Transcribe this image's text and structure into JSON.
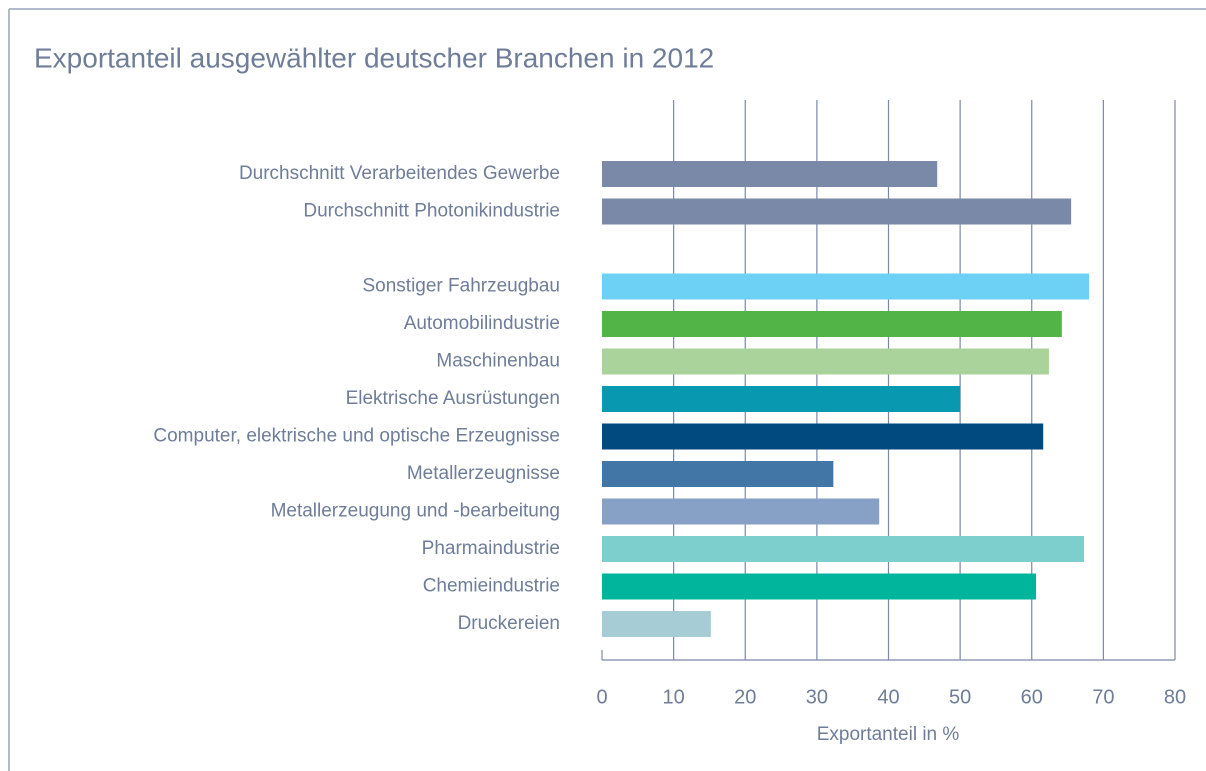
{
  "chart_data": {
    "type": "barh",
    "title": "Exportanteil ausgewählter deutscher Branchen in 2012",
    "xlabel": "Exportanteil in %",
    "categories": [
      "Durchschnitt Verarbeitendes Gewerbe",
      "Durchschnitt Photonikindustrie",
      null,
      "Sonstiger Fahrzeugbau",
      "Automobilindustrie",
      "Maschinenbau",
      "Elektrische Ausrüstungen",
      "Computer, elektrische und optische Erzeugnisse",
      "Metallerzeugnisse",
      "Metallerzeugung und -bearbeitung",
      "Pharmaindustrie",
      "Chemieindustrie",
      "Druckereien"
    ],
    "values": [
      46.8,
      65.5,
      null,
      68.0,
      64.2,
      62.4,
      50.0,
      61.6,
      32.3,
      38.7,
      67.3,
      60.6,
      15.2
    ],
    "colors": [
      "#7b89a8",
      "#7b89a8",
      null,
      "#6dd0f5",
      "#52b447",
      "#a9d39a",
      "#0899b1",
      "#004a7f",
      "#4276a6",
      "#86a0c6",
      "#7ccfcc",
      "#00b59c",
      "#a6cdd6"
    ],
    "xlim": [
      0,
      80
    ],
    "xticks": [
      0,
      10,
      20,
      30,
      40,
      50,
      60,
      70,
      80
    ],
    "grid": true
  }
}
